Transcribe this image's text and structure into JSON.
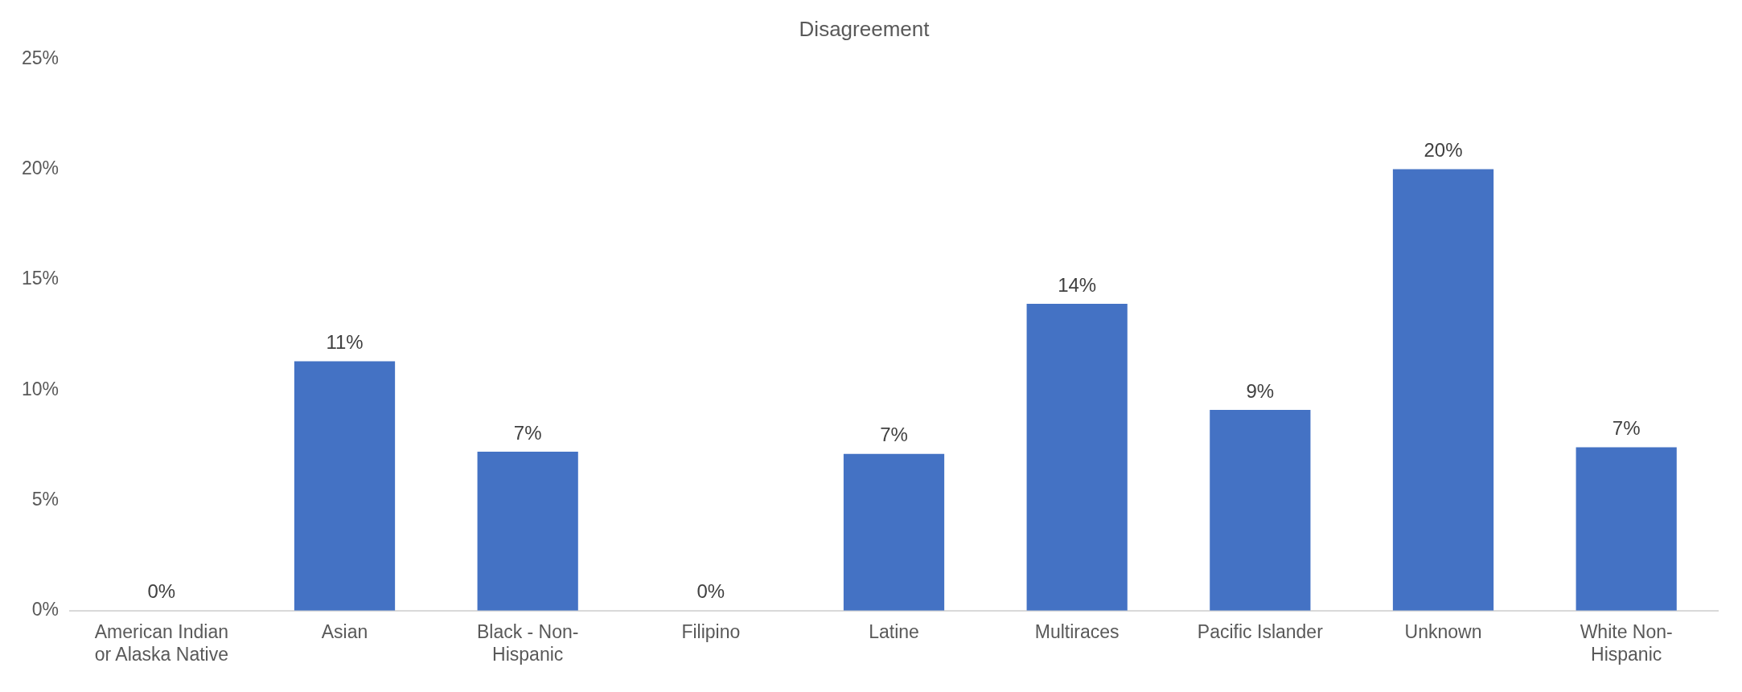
{
  "chart_data": {
    "type": "bar",
    "title": "Disagreement",
    "categories": [
      "American Indian or Alaska Native",
      "Asian",
      "Black - Non-Hispanic",
      "Filipino",
      "Latine",
      "Multiraces",
      "Pacific Islander",
      "Unknown",
      "White Non-Hispanic"
    ],
    "values": [
      0,
      11.3,
      7.2,
      0,
      7.1,
      13.9,
      9.1,
      20,
      7.4
    ],
    "value_labels": [
      "0%",
      "11%",
      "7%",
      "0%",
      "7%",
      "14%",
      "9%",
      "20%",
      "7%"
    ],
    "color": "#4472c4",
    "ylim": [
      0,
      25
    ],
    "yticks": [
      {
        "value": 0,
        "label": "0%"
      },
      {
        "value": 5,
        "label": "5%"
      },
      {
        "value": 10,
        "label": "10%"
      },
      {
        "value": 15,
        "label": "15%"
      },
      {
        "value": 20,
        "label": "20%"
      },
      {
        "value": 25,
        "label": "25%"
      }
    ],
    "grid": false,
    "legend": false
  }
}
